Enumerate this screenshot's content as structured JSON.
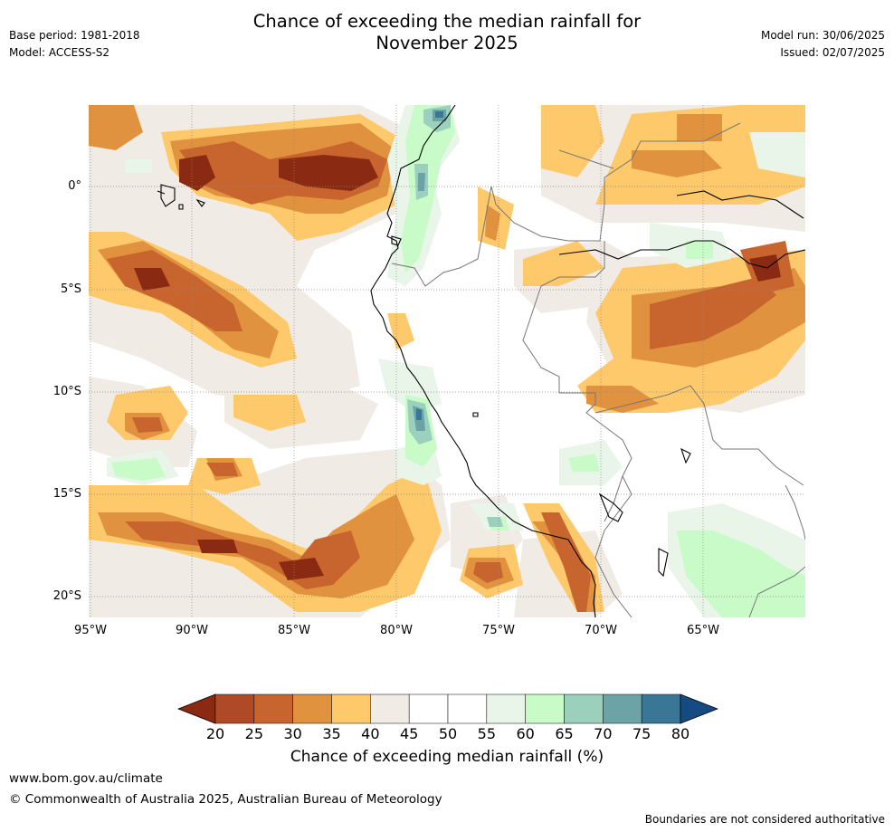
{
  "header": {
    "title_line1": "Chance of exceeding the median rainfall for",
    "title_line2": "November 2025",
    "base_period": "Base period: 1981-2018",
    "model": "Model: ACCESS-S2",
    "model_run": "Model run: 30/06/2025",
    "issued": "Issued: 02/07/2025"
  },
  "map": {
    "lat_labels": [
      "0°",
      "5°S",
      "10°S",
      "15°S",
      "20°S"
    ],
    "lon_labels": [
      "95°W",
      "90°W",
      "85°W",
      "80°W",
      "75°W",
      "70°W",
      "65°W"
    ],
    "region": "Western South America / Eastern Pacific"
  },
  "colorbar": {
    "ticks": [
      "20",
      "25",
      "30",
      "35",
      "40",
      "45",
      "50",
      "55",
      "60",
      "65",
      "70",
      "75",
      "80"
    ],
    "colors": [
      "#8b2a12",
      "#b04a26",
      "#c8652e",
      "#e0923f",
      "#fdc96b",
      "#f0ebe5",
      "#ffffff",
      "#ffffff",
      "#e8f5e8",
      "#c8fbc8",
      "#9bd1bc",
      "#6ba3a6",
      "#3a7796",
      "#164a82"
    ],
    "label": "Chance of exceeding median rainfall (%)"
  },
  "footer": {
    "website": "www.bom.gov.au/climate",
    "copyright": "© Commonwealth of Australia 2025, Australian Bureau of Meteorology",
    "disclaimer": "Boundaries are not considered authoritative"
  }
}
